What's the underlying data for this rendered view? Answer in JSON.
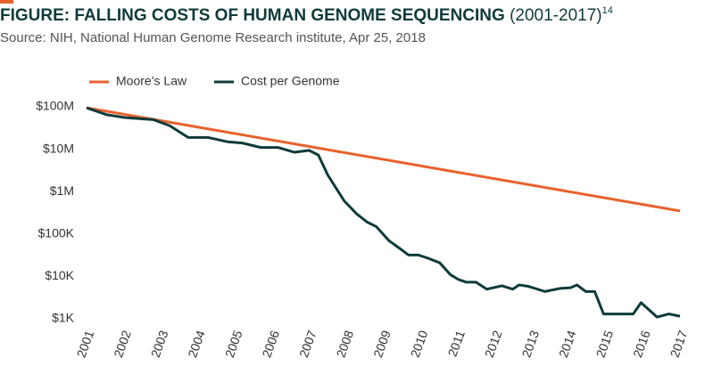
{
  "chart_data": {
    "type": "line",
    "title": "FIGURE: FALLING COSTS OF HUMAN GENOME SEQUENCING",
    "title_suffix": "(2001-2017)",
    "footnote": "14",
    "subtitle": "Source: NIH, National Human Genome Research institute, Apr 25, 2018",
    "log_scale": true,
    "grid": false,
    "legend": "top-left",
    "xlim": [
      2001,
      2017
    ],
    "xticks": [
      2001,
      2002,
      2003,
      2004,
      2005,
      2006,
      2007,
      2008,
      2009,
      2010,
      2011,
      2012,
      2013,
      2014,
      2015,
      2016,
      2017
    ],
    "ylim": [
      1000,
      100000000
    ],
    "yticks": [
      {
        "value": 1000,
        "label": "$1K"
      },
      {
        "value": 10000,
        "label": "$10K"
      },
      {
        "value": 100000,
        "label": "$100K"
      },
      {
        "value": 1000000,
        "label": "$1M"
      },
      {
        "value": 10000000,
        "label": "$10M"
      },
      {
        "value": 100000000,
        "label": "$100M"
      }
    ],
    "series": [
      {
        "name": "Moore’s Law",
        "color": "#e8622f",
        "x": [
          2001,
          2017
        ],
        "values": [
          95000000,
          350000
        ]
      },
      {
        "name": "Cost per Genome",
        "color": "#0f3b3a",
        "x": [
          2001.0,
          2001.55,
          2002.03,
          2002.63,
          2002.8,
          2003.24,
          2003.74,
          2004.27,
          2004.8,
          2005.2,
          2005.7,
          2006.17,
          2006.6,
          2006.84,
          2007.0,
          2007.25,
          2007.5,
          2007.73,
          2007.95,
          2008.28,
          2008.57,
          2008.81,
          2009.15,
          2009.44,
          2009.68,
          2009.94,
          2010.2,
          2010.52,
          2010.81,
          2011.02,
          2011.24,
          2011.5,
          2011.79,
          2012.2,
          2012.49,
          2012.66,
          2012.92,
          2013.36,
          2013.76,
          2014.05,
          2014.22,
          2014.46,
          2014.7,
          2014.94,
          2015.16,
          2015.74,
          2015.95,
          2016.38,
          2016.7,
          2017.0
        ],
        "values": [
          95000000,
          65000000,
          56000000,
          51000000,
          50000000,
          36000000,
          19000000,
          19000000,
          15000000,
          14000000,
          11000000,
          11000000,
          8500000,
          9000000,
          9400000,
          7300000,
          2500000,
          1200000,
          600000,
          300000,
          190000,
          150000,
          70000,
          46000,
          32000,
          32000,
          27000,
          21000,
          11000,
          8500,
          7300,
          7300,
          5000,
          6000,
          5000,
          6300,
          5800,
          4400,
          5200,
          5400,
          6300,
          4400,
          4400,
          1300,
          1300,
          1300,
          2400,
          1100,
          1300,
          1150
        ]
      }
    ]
  }
}
